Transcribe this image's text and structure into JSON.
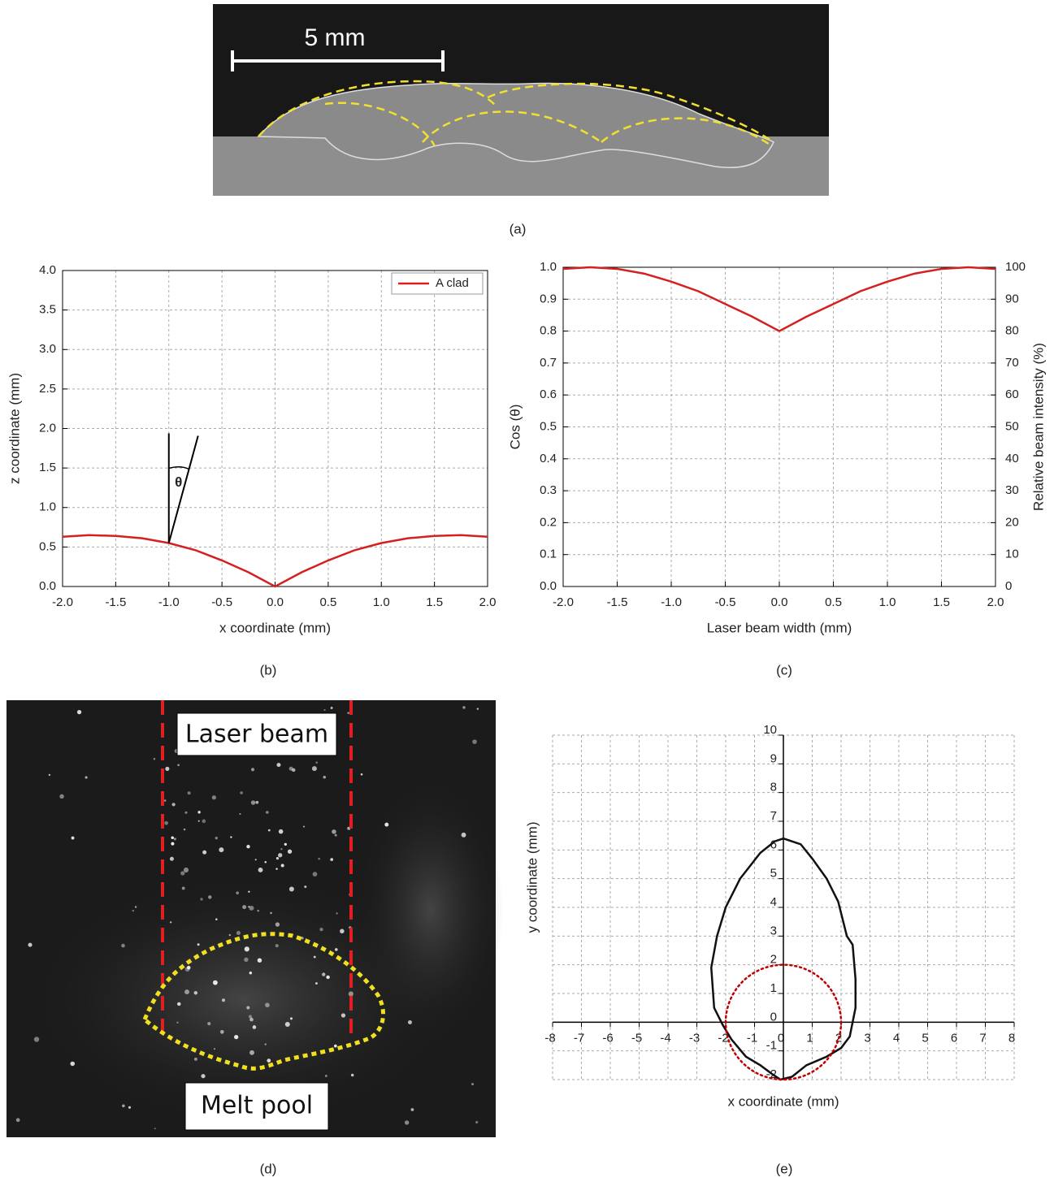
{
  "captions": [
    "(a)",
    "(b)",
    "(c)",
    "(d)",
    "(e)"
  ],
  "photos": {
    "a": {
      "scale_label": "5 mm"
    },
    "d": {
      "labels": [
        "Laser beam",
        "Melt pool"
      ]
    }
  },
  "chart_data": [
    {
      "type": "line",
      "xlabel": "x coordinate (mm)",
      "ylabel": "z coordinate (mm)",
      "grid": true,
      "legend": "upper right",
      "annotations": [
        "θ"
      ],
      "x": [
        -2,
        -1.75,
        -1.5,
        -1.25,
        -1,
        -0.75,
        -0.5,
        -0.25,
        0,
        0.25,
        0.5,
        0.75,
        1,
        1.25,
        1.5,
        1.75,
        2
      ],
      "series": [
        {
          "name": "A clad",
          "color": "#d42020",
          "values": [
            0.63,
            0.65,
            0.64,
            0.61,
            0.55,
            0.46,
            0.33,
            0.18,
            0,
            0.18,
            0.33,
            0.46,
            0.55,
            0.61,
            0.64,
            0.65,
            0.63
          ]
        }
      ],
      "xlim": [
        -2,
        2
      ],
      "ylim": [
        0,
        4
      ],
      "xticks": [
        {
          "value": -2,
          "label": "-2.0"
        },
        {
          "value": -1.5,
          "label": "-1.5"
        },
        {
          "value": -1,
          "label": "-1.0"
        },
        {
          "value": -0.5,
          "label": "-0.5"
        },
        {
          "value": 0,
          "label": "0.0"
        },
        {
          "value": 0.5,
          "label": "0.5"
        },
        {
          "value": 1,
          "label": "1.0"
        },
        {
          "value": 1.5,
          "label": "1.5"
        },
        {
          "value": 2,
          "label": "2.0"
        }
      ],
      "yticks": [
        {
          "value": 0,
          "label": "0.0"
        },
        {
          "value": 0.5,
          "label": "0.5"
        },
        {
          "value": 1,
          "label": "1.0"
        },
        {
          "value": 1.5,
          "label": "1.5"
        },
        {
          "value": 2,
          "label": "2.0"
        },
        {
          "value": 2.5,
          "label": "2.5"
        },
        {
          "value": 3,
          "label": "3.0"
        },
        {
          "value": 3.5,
          "label": "3.5"
        },
        {
          "value": 4,
          "label": "4.0"
        }
      ]
    },
    {
      "type": "line",
      "xlabel": "Laser beam width (mm)",
      "ylabel": "Cos (θ)",
      "y2label": "Relative beam intensity (%)",
      "grid": true,
      "x": [
        -2,
        -1.75,
        -1.5,
        -1.25,
        -1,
        -0.75,
        -0.5,
        -0.25,
        0,
        0.25,
        0.5,
        0.75,
        1,
        1.25,
        1.5,
        1.75,
        2
      ],
      "series": [
        {
          "name": "Cos (θ)",
          "color": "#d42020",
          "values": [
            0.995,
            1,
            0.995,
            0.98,
            0.955,
            0.925,
            0.885,
            0.845,
            0.8,
            0.845,
            0.885,
            0.925,
            0.955,
            0.98,
            0.995,
            1,
            0.995
          ]
        }
      ],
      "xlim": [
        -2,
        2
      ],
      "ylim": [
        0,
        1
      ],
      "y2lim": [
        0,
        100
      ],
      "xticks": [
        {
          "value": -2,
          "label": "-2.0"
        },
        {
          "value": -1.5,
          "label": "-1.5"
        },
        {
          "value": -1,
          "label": "-1.0"
        },
        {
          "value": -0.5,
          "label": "-0.5"
        },
        {
          "value": 0,
          "label": "0.0"
        },
        {
          "value": 0.5,
          "label": "0.5"
        },
        {
          "value": 1,
          "label": "1.0"
        },
        {
          "value": 1.5,
          "label": "1.5"
        },
        {
          "value": 2,
          "label": "2.0"
        }
      ],
      "yticks": [
        {
          "value": 0,
          "label": "0.0"
        },
        {
          "value": 0.1,
          "label": "0.1"
        },
        {
          "value": 0.2,
          "label": "0.2"
        },
        {
          "value": 0.3,
          "label": "0.3"
        },
        {
          "value": 0.4,
          "label": "0.4"
        },
        {
          "value": 0.5,
          "label": "0.5"
        },
        {
          "value": 0.6,
          "label": "0.6"
        },
        {
          "value": 0.7,
          "label": "0.7"
        },
        {
          "value": 0.8,
          "label": "0.8"
        },
        {
          "value": 0.9,
          "label": "0.9"
        },
        {
          "value": 1,
          "label": "1.0"
        }
      ],
      "y2ticks": [
        0,
        10,
        20,
        30,
        40,
        50,
        60,
        70,
        80,
        90,
        100
      ]
    },
    {
      "type": "line",
      "xlabel": "x coordinate (mm)",
      "ylabel": "y coordinate (mm)",
      "grid": true,
      "axes_through_origin": true,
      "series": [
        {
          "color": "#111111",
          "x": [
            0,
            0.6,
            1,
            1.5,
            1.9,
            2.2,
            2.4,
            2.5,
            2.5,
            2.3,
            2,
            1.5,
            0.8,
            0.3,
            -0.1,
            -0.4,
            -0.8,
            -1.3,
            -1.8,
            -2.1,
            -2.4,
            -2.5,
            -2.3,
            -2,
            -1.5,
            -0.8,
            -0.3,
            0
          ],
          "values": [
            6.4,
            6.2,
            5.7,
            5,
            4.2,
            3,
            2.7,
            1.5,
            0.5,
            -0.5,
            -0.9,
            -1.2,
            -1.5,
            -1.9,
            -2,
            -1.8,
            -1.5,
            -1.2,
            -0.6,
            -0.1,
            0.5,
            1.9,
            3,
            4,
            5,
            5.9,
            6.3,
            6.4
          ]
        }
      ],
      "circle": {
        "center": [
          0,
          0
        ],
        "radius": 2,
        "color": "#c00000"
      },
      "xlim": [
        -8,
        8
      ],
      "ylim": [
        -2,
        10
      ],
      "xticks": [
        -8,
        -7,
        -6,
        -5,
        -4,
        -3,
        -2,
        -1,
        0,
        1,
        2,
        3,
        4,
        5,
        6,
        7,
        8
      ],
      "yticks": [
        -2,
        -1,
        0,
        1,
        2,
        3,
        4,
        5,
        6,
        7,
        8,
        9,
        10
      ]
    }
  ]
}
